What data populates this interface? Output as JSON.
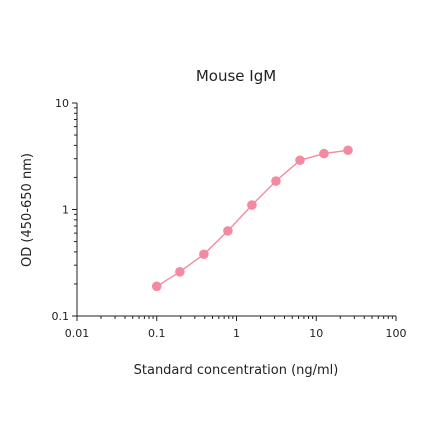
{
  "chart_data": {
    "type": "line",
    "title": "Mouse IgM",
    "xlabel": "Standard concentration (ng/ml)",
    "ylabel": "OD (450-650 nm)",
    "xscale": "log",
    "yscale": "log",
    "xlim": [
      0.01,
      100
    ],
    "ylim": [
      0.1,
      10
    ],
    "xticks": [
      0.01,
      0.1,
      1,
      10,
      100
    ],
    "xtick_labels": [
      "0.01",
      "0.1",
      "1",
      "10",
      "100"
    ],
    "yticks": [
      0.1,
      1,
      10
    ],
    "ytick_labels": [
      "0.1",
      "1",
      "10"
    ],
    "grid": false,
    "series": [
      {
        "color": "#f48aa2",
        "x": [
          0.1,
          0.195,
          0.39,
          0.78,
          1.56,
          3.125,
          6.25,
          12.5,
          25
        ],
        "y": [
          0.19,
          0.26,
          0.38,
          0.63,
          1.1,
          1.85,
          2.9,
          3.35,
          3.6
        ]
      }
    ]
  }
}
